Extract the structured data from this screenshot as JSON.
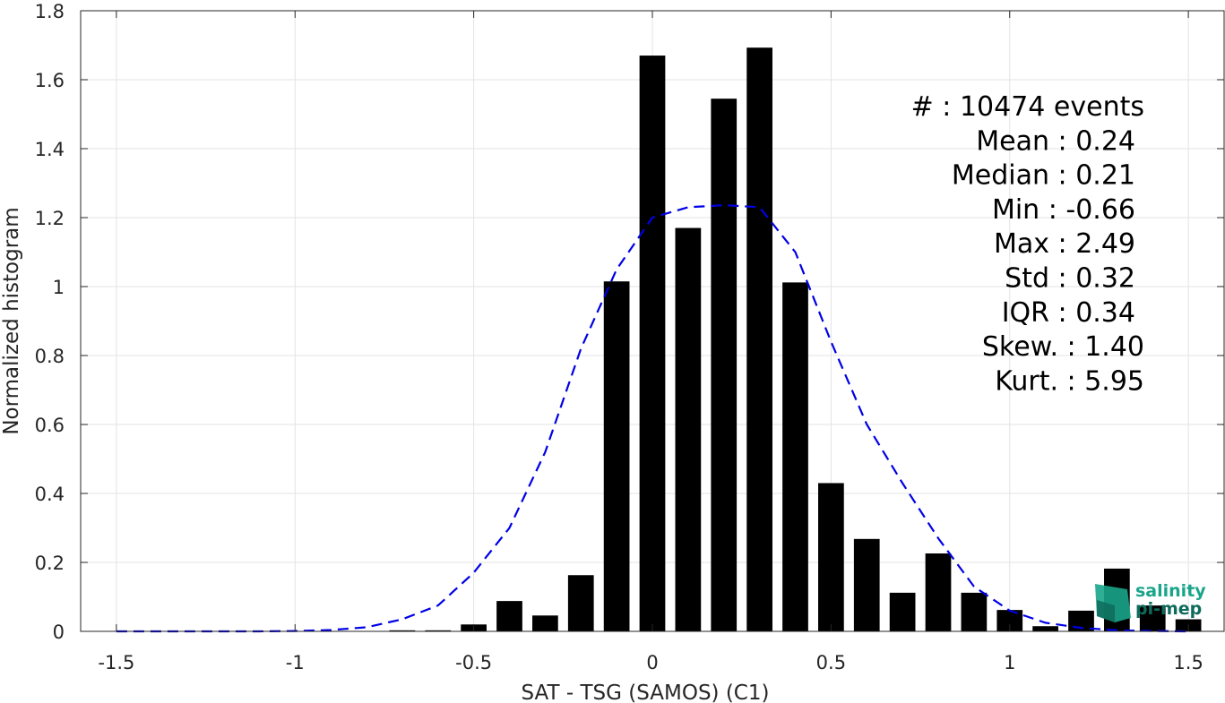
{
  "chart_data": {
    "type": "bar",
    "title": "",
    "xlabel": "SAT - TSG (SAMOS) (C1)",
    "ylabel": "Normalized histogram",
    "xlim": [
      -1.6,
      1.6
    ],
    "ylim": [
      0,
      1.8
    ],
    "grid": true,
    "x_ticks": [
      -1.5,
      -1,
      -0.5,
      0,
      0.5,
      1,
      1.5
    ],
    "x_tick_labels": [
      "-1.5",
      "-1",
      "-0.5",
      "0",
      "0.5",
      "1",
      "1.5"
    ],
    "y_ticks": [
      0,
      0.2,
      0.4,
      0.6,
      0.8,
      1,
      1.2,
      1.4,
      1.6,
      1.8
    ],
    "y_tick_labels": [
      "0",
      "0.2",
      "0.4",
      "0.6",
      "0.8",
      "1",
      "1.2",
      "1.4",
      "1.6",
      "1.8"
    ],
    "bar_width": 0.072,
    "bar_color": "#000000",
    "bars": {
      "x": [
        -0.7,
        -0.6,
        -0.5,
        -0.4,
        -0.3,
        -0.2,
        -0.1,
        0.0,
        0.1,
        0.2,
        0.3,
        0.4,
        0.5,
        0.6,
        0.7,
        0.8,
        0.9,
        1.0,
        1.1,
        1.2,
        1.3,
        1.4,
        1.5
      ],
      "values": [
        0.003,
        0.003,
        0.02,
        0.088,
        0.046,
        0.163,
        1.015,
        1.67,
        1.17,
        1.545,
        1.693,
        1.012,
        0.43,
        0.268,
        0.112,
        0.226,
        0.112,
        0.062,
        0.015,
        0.06,
        0.182,
        0.075,
        0.035
      ]
    },
    "fit_curve": {
      "name": "",
      "style": "dashed",
      "color": "#0000e6",
      "x": [
        -1.5,
        -1.4,
        -1.3,
        -1.2,
        -1.1,
        -1.0,
        -0.9,
        -0.8,
        -0.7,
        -0.6,
        -0.5,
        -0.4,
        -0.3,
        -0.2,
        -0.1,
        0.0,
        0.1,
        0.2,
        0.22,
        0.3,
        0.4,
        0.5,
        0.6,
        0.7,
        0.8,
        0.9,
        1.0,
        1.1,
        1.2,
        1.3,
        1.4,
        1.5
      ],
      "y": [
        0.0,
        0.0,
        0.0,
        0.0,
        0.0,
        0.001,
        0.004,
        0.012,
        0.035,
        0.075,
        0.17,
        0.3,
        0.52,
        0.82,
        1.05,
        1.2,
        1.23,
        1.236,
        1.235,
        1.23,
        1.1,
        0.84,
        0.6,
        0.43,
        0.27,
        0.13,
        0.06,
        0.025,
        0.01,
        0.003,
        0.001,
        0.0
      ]
    },
    "annotations": [
      "#  : 10474 events",
      "Mean : 0.24",
      "Median : 0.21",
      "Min : -0.66",
      "Max : 2.49",
      "Std : 0.32",
      "IQR : 0.34",
      "Skew. : 1.40",
      "Kurt. : 5.95"
    ]
  },
  "logo": {
    "line1": "salinity",
    "line2": "pi-mep",
    "color1": "#1aa58a",
    "color2": "#0e6b5c"
  }
}
